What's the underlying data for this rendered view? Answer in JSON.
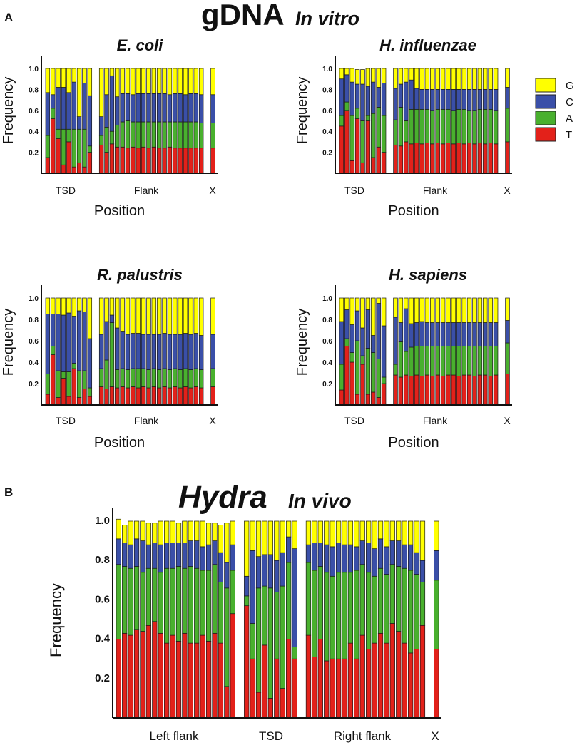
{
  "panel_a": {
    "letter": "A",
    "title": "gDNA",
    "subtitle": "In vitro"
  },
  "panel_b": {
    "letter": "B",
    "title": "Hydra",
    "subtitle": "In vivo"
  },
  "legend": [
    {
      "label": "G",
      "color": "#ffff00"
    },
    {
      "label": "C",
      "color": "#3a4fa8"
    },
    {
      "label": "A",
      "color": "#49b02e"
    },
    {
      "label": "T",
      "color": "#e3211a"
    }
  ],
  "colors": {
    "T": "#e3211a",
    "A": "#49b02e",
    "C": "#3a4fa8",
    "G": "#ffff00"
  },
  "chart_data": [
    {
      "type": "bar",
      "stacked": true,
      "title": "E. coli",
      "ylabel": "Frequency",
      "xlabel": "Position",
      "ylim": [
        0,
        1.0
      ],
      "yticks": [
        "0.2",
        "0.4",
        "0.6",
        "0.8",
        "1.0"
      ],
      "groups": [
        {
          "label": "TSD",
          "size": 9
        },
        {
          "label": "Flank",
          "size": 20
        },
        {
          "label": "X",
          "size": 1
        }
      ],
      "series": [
        {
          "name": "T",
          "values": [
            0.15,
            0.52,
            0.33,
            0.08,
            0.3,
            0.06,
            0.1,
            0.06,
            0.2,
            0.27,
            0.2,
            0.28,
            0.25,
            0.25,
            0.24,
            0.25,
            0.24,
            0.25,
            0.24,
            0.25,
            0.24,
            0.24,
            0.25,
            0.24,
            0.24,
            0.24,
            0.24,
            0.24,
            0.24,
            0.24
          ]
        },
        {
          "name": "A",
          "values": [
            0.21,
            0.1,
            0.09,
            0.34,
            0.12,
            0.36,
            0.32,
            0.36,
            0.06,
            0.09,
            0.24,
            0.12,
            0.21,
            0.24,
            0.26,
            0.24,
            0.25,
            0.24,
            0.25,
            0.24,
            0.25,
            0.25,
            0.24,
            0.25,
            0.25,
            0.25,
            0.25,
            0.25,
            0.24,
            0.24
          ]
        },
        {
          "name": "C",
          "values": [
            0.41,
            0.13,
            0.4,
            0.4,
            0.35,
            0.45,
            0.12,
            0.44,
            0.48,
            0.18,
            0.31,
            0.53,
            0.27,
            0.27,
            0.26,
            0.26,
            0.27,
            0.27,
            0.27,
            0.27,
            0.27,
            0.27,
            0.26,
            0.27,
            0.27,
            0.26,
            0.27,
            0.27,
            0.27,
            0.27
          ]
        },
        {
          "name": "G",
          "values": [
            0.23,
            0.25,
            0.18,
            0.18,
            0.23,
            0.13,
            0.46,
            0.14,
            0.26,
            0.46,
            0.25,
            0.07,
            0.27,
            0.24,
            0.24,
            0.25,
            0.24,
            0.24,
            0.24,
            0.24,
            0.24,
            0.24,
            0.25,
            0.24,
            0.24,
            0.25,
            0.24,
            0.24,
            0.25,
            0.25
          ]
        }
      ]
    },
    {
      "type": "bar",
      "stacked": true,
      "title": "H. influenzae",
      "ylabel": "Frequency",
      "xlabel": "Position",
      "ylim": [
        0,
        1.0
      ],
      "yticks": [
        "0.2",
        "0.4",
        "0.6",
        "0.8",
        "1.0"
      ],
      "groups": [
        {
          "label": "TSD",
          "size": 9
        },
        {
          "label": "Flank",
          "size": 20
        },
        {
          "label": "X",
          "size": 1
        }
      ],
      "series": [
        {
          "name": "T",
          "values": [
            0.45,
            0.6,
            0.12,
            0.52,
            0.1,
            0.5,
            0.15,
            0.25,
            0.2,
            0.27,
            0.26,
            0.3,
            0.28,
            0.29,
            0.28,
            0.29,
            0.28,
            0.29,
            0.28,
            0.29,
            0.28,
            0.29,
            0.28,
            0.29,
            0.28,
            0.29,
            0.28,
            0.29,
            0.28,
            0.3
          ]
        },
        {
          "name": "A",
          "values": [
            0.1,
            0.08,
            0.43,
            0.1,
            0.4,
            0.05,
            0.42,
            0.38,
            0.35,
            0.24,
            0.37,
            0.2,
            0.33,
            0.32,
            0.33,
            0.32,
            0.32,
            0.32,
            0.33,
            0.32,
            0.32,
            0.32,
            0.33,
            0.31,
            0.32,
            0.32,
            0.33,
            0.32,
            0.32,
            0.32
          ]
        },
        {
          "name": "C",
          "values": [
            0.35,
            0.26,
            0.32,
            0.23,
            0.35,
            0.28,
            0.3,
            0.19,
            0.31,
            0.3,
            0.22,
            0.37,
            0.28,
            0.2,
            0.19,
            0.19,
            0.2,
            0.19,
            0.19,
            0.19,
            0.2,
            0.19,
            0.19,
            0.2,
            0.2,
            0.19,
            0.19,
            0.19,
            0.2,
            0.2
          ]
        },
        {
          "name": "G",
          "values": [
            0.1,
            0.06,
            0.13,
            0.14,
            0.14,
            0.17,
            0.13,
            0.18,
            0.14,
            0.19,
            0.15,
            0.13,
            0.11,
            0.19,
            0.2,
            0.2,
            0.2,
            0.2,
            0.2,
            0.2,
            0.2,
            0.2,
            0.2,
            0.2,
            0.2,
            0.2,
            0.2,
            0.2,
            0.2,
            0.18
          ]
        }
      ]
    },
    {
      "type": "bar",
      "stacked": true,
      "title": "R. palustris",
      "ylabel": "Frequency",
      "xlabel": "Position",
      "ylim": [
        0,
        1.0
      ],
      "yticks": [
        "0.2",
        "0.4",
        "0.6",
        "0.8",
        "1.0"
      ],
      "groups": [
        {
          "label": "TSD",
          "size": 9
        },
        {
          "label": "Flank",
          "size": 20
        },
        {
          "label": "X",
          "size": 1
        }
      ],
      "series": [
        {
          "name": "T",
          "values": [
            0.1,
            0.47,
            0.07,
            0.25,
            0.08,
            0.34,
            0.07,
            0.15,
            0.08,
            0.17,
            0.15,
            0.17,
            0.16,
            0.17,
            0.16,
            0.17,
            0.16,
            0.17,
            0.16,
            0.17,
            0.16,
            0.17,
            0.16,
            0.17,
            0.16,
            0.17,
            0.16,
            0.17,
            0.16,
            0.17
          ]
        },
        {
          "name": "A",
          "values": [
            0.19,
            0.08,
            0.25,
            0.06,
            0.23,
            0.05,
            0.25,
            0.17,
            0.08,
            0.17,
            0.27,
            0.6,
            0.17,
            0.17,
            0.17,
            0.17,
            0.18,
            0.17,
            0.17,
            0.17,
            0.17,
            0.17,
            0.17,
            0.17,
            0.17,
            0.17,
            0.17,
            0.17,
            0.17,
            0.17
          ]
        },
        {
          "name": "C",
          "values": [
            0.56,
            0.3,
            0.53,
            0.53,
            0.55,
            0.44,
            0.56,
            0.55,
            0.46,
            0.32,
            0.36,
            0.07,
            0.39,
            0.35,
            0.33,
            0.33,
            0.33,
            0.32,
            0.33,
            0.32,
            0.33,
            0.33,
            0.33,
            0.32,
            0.33,
            0.33,
            0.33,
            0.33,
            0.32,
            0.32
          ]
        },
        {
          "name": "G",
          "values": [
            0.15,
            0.15,
            0.15,
            0.16,
            0.14,
            0.17,
            0.12,
            0.13,
            0.38,
            0.34,
            0.22,
            0.16,
            0.28,
            0.31,
            0.34,
            0.33,
            0.33,
            0.34,
            0.34,
            0.34,
            0.34,
            0.33,
            0.34,
            0.34,
            0.34,
            0.33,
            0.34,
            0.33,
            0.35,
            0.34
          ]
        }
      ]
    },
    {
      "type": "bar",
      "stacked": true,
      "title": "H. sapiens",
      "ylabel": "Frequency",
      "xlabel": "Position",
      "ylim": [
        0,
        1.0
      ],
      "yticks": [
        "0.2",
        "0.4",
        "0.6",
        "0.8",
        "1.0"
      ],
      "groups": [
        {
          "label": "TSD",
          "size": 9
        },
        {
          "label": "Flank",
          "size": 20
        },
        {
          "label": "X",
          "size": 1
        }
      ],
      "series": [
        {
          "name": "T",
          "values": [
            0.14,
            0.55,
            0.4,
            0.1,
            0.38,
            0.1,
            0.12,
            0.07,
            0.2,
            0.28,
            0.26,
            0.28,
            0.27,
            0.28,
            0.27,
            0.28,
            0.27,
            0.28,
            0.27,
            0.28,
            0.28,
            0.27,
            0.28,
            0.28,
            0.27,
            0.28,
            0.28,
            0.27,
            0.28,
            0.29
          ]
        },
        {
          "name": "A",
          "values": [
            0.24,
            0.07,
            0.09,
            0.5,
            0.08,
            0.43,
            0.37,
            0.36,
            0.06,
            0.1,
            0.33,
            0.22,
            0.27,
            0.27,
            0.28,
            0.27,
            0.28,
            0.27,
            0.28,
            0.27,
            0.27,
            0.28,
            0.27,
            0.27,
            0.28,
            0.27,
            0.27,
            0.28,
            0.27,
            0.29
          ]
        },
        {
          "name": "C",
          "values": [
            0.4,
            0.27,
            0.26,
            0.28,
            0.26,
            0.36,
            0.16,
            0.52,
            0.48,
            0.44,
            0.18,
            0.4,
            0.22,
            0.22,
            0.23,
            0.22,
            0.22,
            0.22,
            0.22,
            0.22,
            0.22,
            0.22,
            0.22,
            0.22,
            0.22,
            0.22,
            0.22,
            0.22,
            0.22,
            0.21
          ]
        },
        {
          "name": "G",
          "values": [
            0.22,
            0.11,
            0.25,
            0.12,
            0.28,
            0.11,
            0.35,
            0.05,
            0.26,
            0.18,
            0.23,
            0.1,
            0.24,
            0.23,
            0.22,
            0.23,
            0.23,
            0.23,
            0.23,
            0.23,
            0.23,
            0.23,
            0.23,
            0.23,
            0.23,
            0.23,
            0.23,
            0.23,
            0.23,
            0.21
          ]
        }
      ]
    },
    {
      "type": "bar",
      "stacked": true,
      "title": "Hydra In vivo",
      "ylabel": "Frequency",
      "xlabel": "",
      "ylim": [
        0,
        1.0
      ],
      "yticks": [
        "0.2",
        "0.4",
        "0.6",
        "0.8",
        "1.0"
      ],
      "groups": [
        {
          "label": "Left flank",
          "size": 20
        },
        {
          "label": "TSD",
          "size": 9
        },
        {
          "label": "Right flank",
          "size": 20
        },
        {
          "label": "X",
          "size": 1
        }
      ],
      "series": [
        {
          "name": "T",
          "values": [
            0.4,
            0.43,
            0.42,
            0.45,
            0.44,
            0.47,
            0.49,
            0.43,
            0.38,
            0.42,
            0.39,
            0.43,
            0.38,
            0.38,
            0.42,
            0.39,
            0.43,
            0.38,
            0.16,
            0.53,
            0.57,
            0.3,
            0.13,
            0.37,
            0.1,
            0.3,
            0.15,
            0.4,
            0.3,
            0.42,
            0.31,
            0.4,
            0.29,
            0.3,
            0.3,
            0.3,
            0.38,
            0.3,
            0.42,
            0.35,
            0.38,
            0.43,
            0.38,
            0.48,
            0.44,
            0.38,
            0.33,
            0.35,
            0.47,
            0.35
          ]
        },
        {
          "name": "A",
          "values": [
            0.38,
            0.34,
            0.34,
            0.32,
            0.3,
            0.29,
            0.27,
            0.31,
            0.38,
            0.34,
            0.38,
            0.33,
            0.39,
            0.38,
            0.33,
            0.36,
            0.35,
            0.31,
            0.5,
            0.22,
            0.05,
            0.18,
            0.53,
            0.3,
            0.56,
            0.34,
            0.52,
            0.39,
            0.06,
            0.37,
            0.44,
            0.37,
            0.45,
            0.42,
            0.44,
            0.44,
            0.36,
            0.45,
            0.36,
            0.39,
            0.34,
            0.33,
            0.35,
            0.3,
            0.33,
            0.38,
            0.42,
            0.38,
            0.22,
            0.35
          ]
        },
        {
          "name": "C",
          "values": [
            0.13,
            0.12,
            0.12,
            0.14,
            0.16,
            0.12,
            0.13,
            0.14,
            0.13,
            0.13,
            0.12,
            0.13,
            0.13,
            0.14,
            0.12,
            0.13,
            0.12,
            0.15,
            0.13,
            0.13,
            0.1,
            0.37,
            0.16,
            0.16,
            0.17,
            0.16,
            0.17,
            0.13,
            0.5,
            0.09,
            0.14,
            0.12,
            0.14,
            0.15,
            0.15,
            0.14,
            0.14,
            0.12,
            0.12,
            0.15,
            0.14,
            0.15,
            0.14,
            0.12,
            0.13,
            0.12,
            0.13,
            0.11,
            0.11,
            0.15
          ]
        },
        {
          "name": "G",
          "values": [
            0.1,
            0.09,
            0.12,
            0.09,
            0.1,
            0.11,
            0.1,
            0.12,
            0.11,
            0.11,
            0.1,
            0.11,
            0.1,
            0.1,
            0.13,
            0.11,
            0.09,
            0.14,
            0.2,
            0.12,
            0.28,
            0.15,
            0.18,
            0.17,
            0.17,
            0.2,
            0.16,
            0.08,
            0.14,
            0.12,
            0.11,
            0.11,
            0.12,
            0.13,
            0.11,
            0.12,
            0.12,
            0.13,
            0.1,
            0.11,
            0.14,
            0.09,
            0.13,
            0.1,
            0.1,
            0.12,
            0.12,
            0.16,
            0.2,
            0.15
          ]
        }
      ]
    }
  ]
}
